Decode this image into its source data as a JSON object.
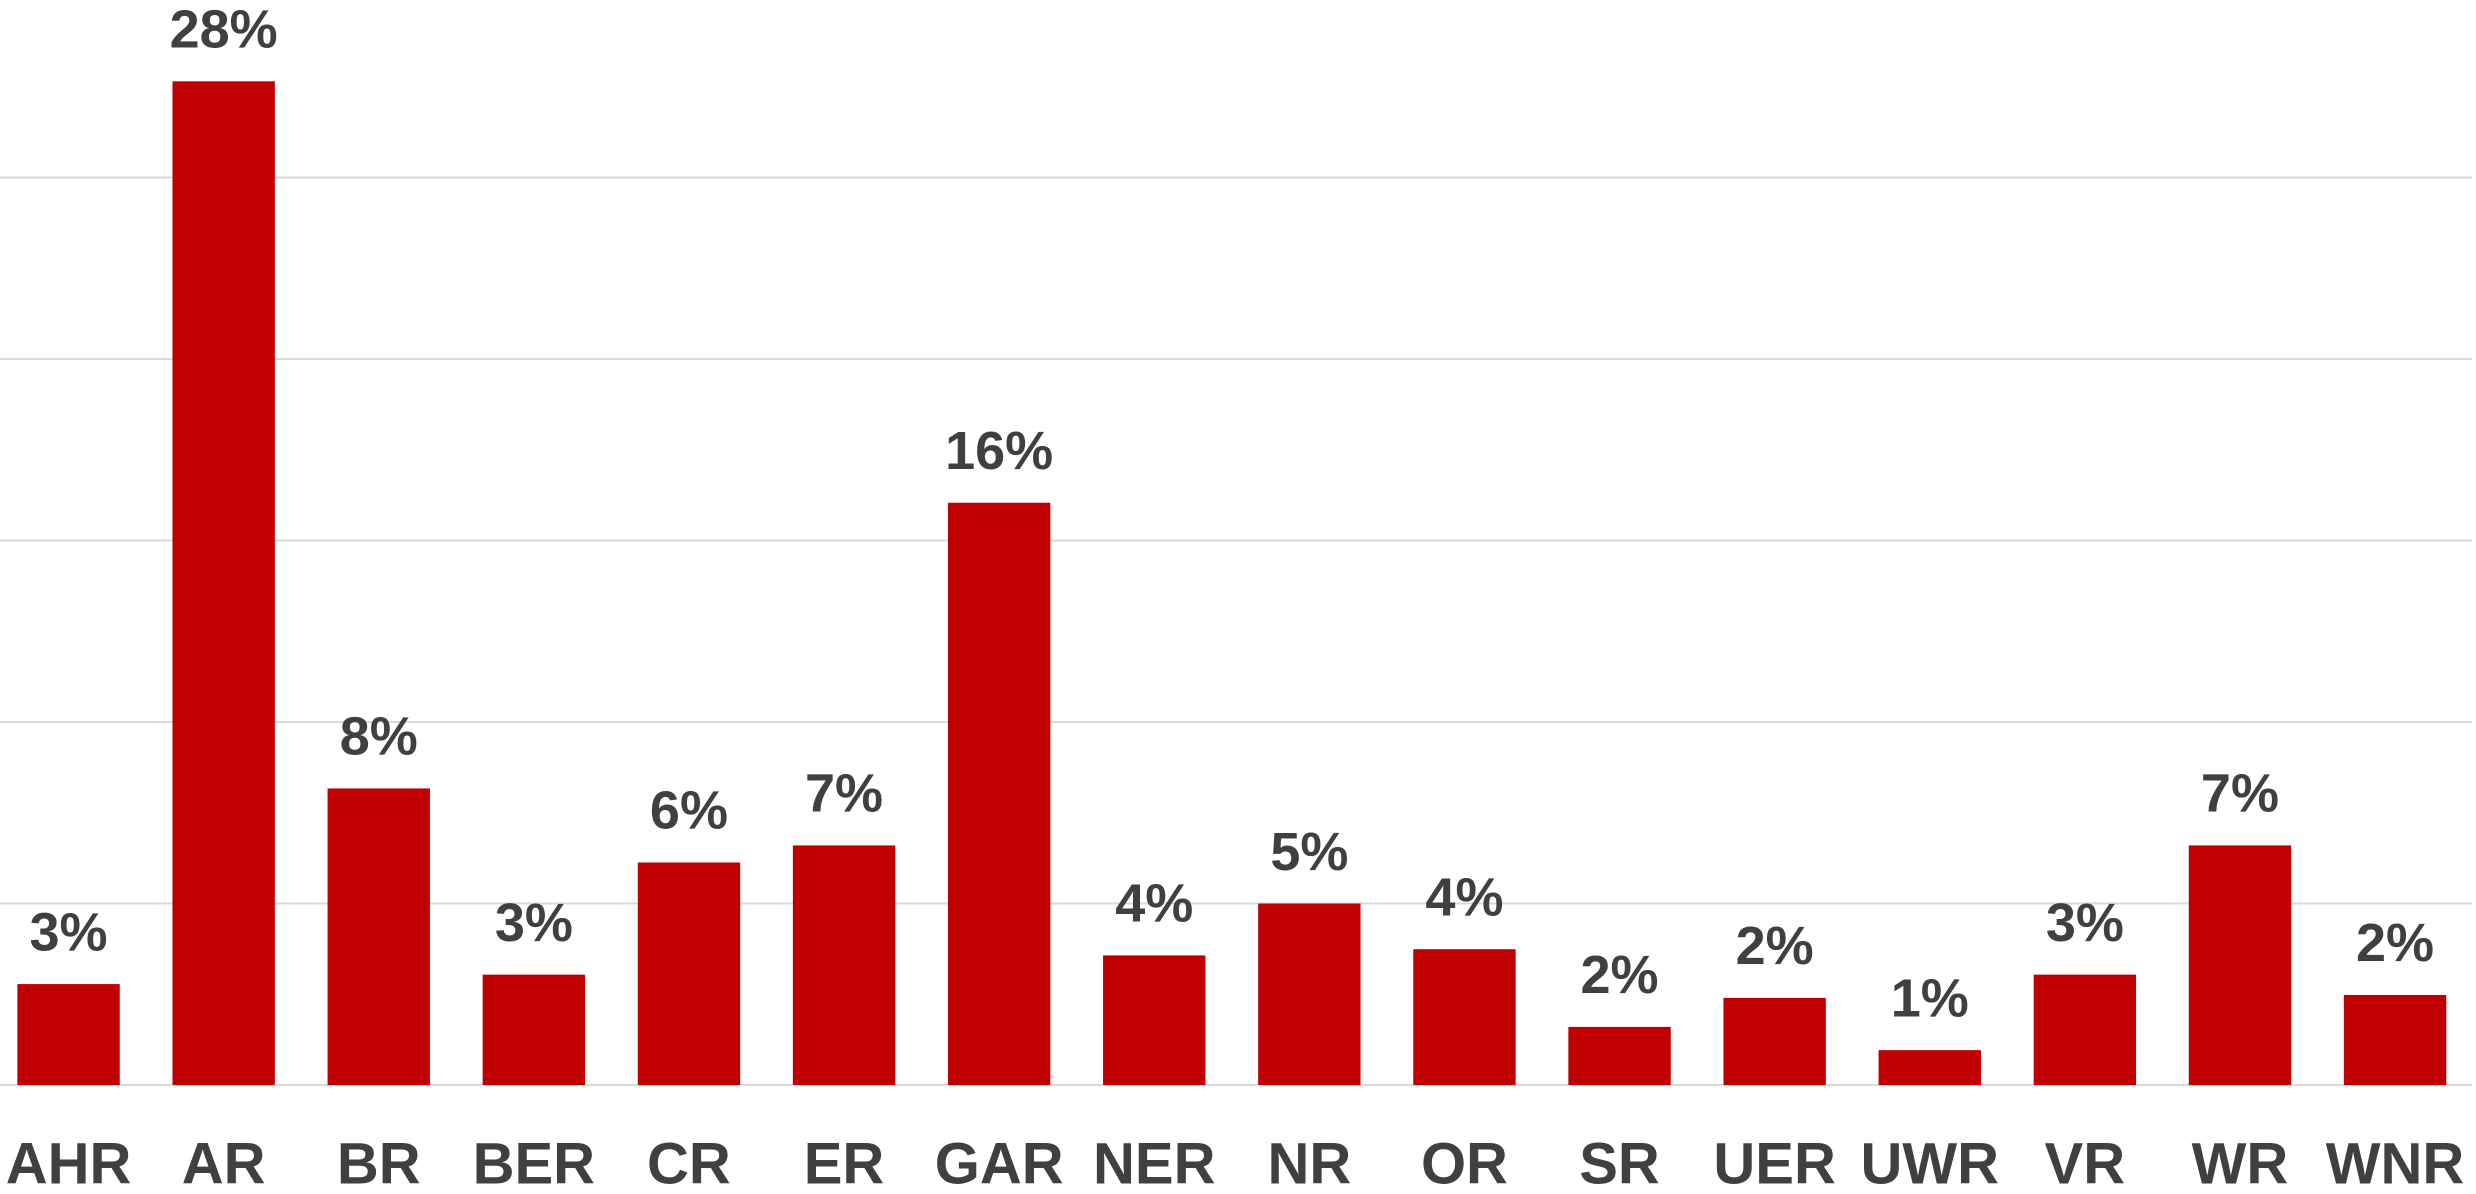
{
  "chart_data": {
    "type": "bar",
    "categories": [
      "AHR",
      "AR",
      "BR",
      "BER",
      "CR",
      "ER",
      "GAR",
      "NER",
      "NR",
      "OR",
      "SR",
      "UER",
      "UWR",
      "VR",
      "WR",
      "WNR"
    ],
    "values": [
      2.78,
      27.65,
      8.17,
      3.04,
      6.13,
      6.6,
      16.04,
      3.57,
      5.0,
      3.74,
      1.6,
      2.4,
      0.96,
      3.04,
      6.6,
      2.48
    ],
    "value_labels": [
      "3%",
      "28%",
      "8%",
      "3%",
      "6%",
      "7%",
      "16%",
      "4%",
      "5%",
      "4%",
      "2%",
      "2%",
      "1%",
      "3%",
      "7%",
      "2%"
    ],
    "color": "#c00000",
    "ylim": [
      0,
      30
    ],
    "yticks": [
      0,
      5,
      10,
      15,
      20,
      25
    ],
    "grid": true
  }
}
